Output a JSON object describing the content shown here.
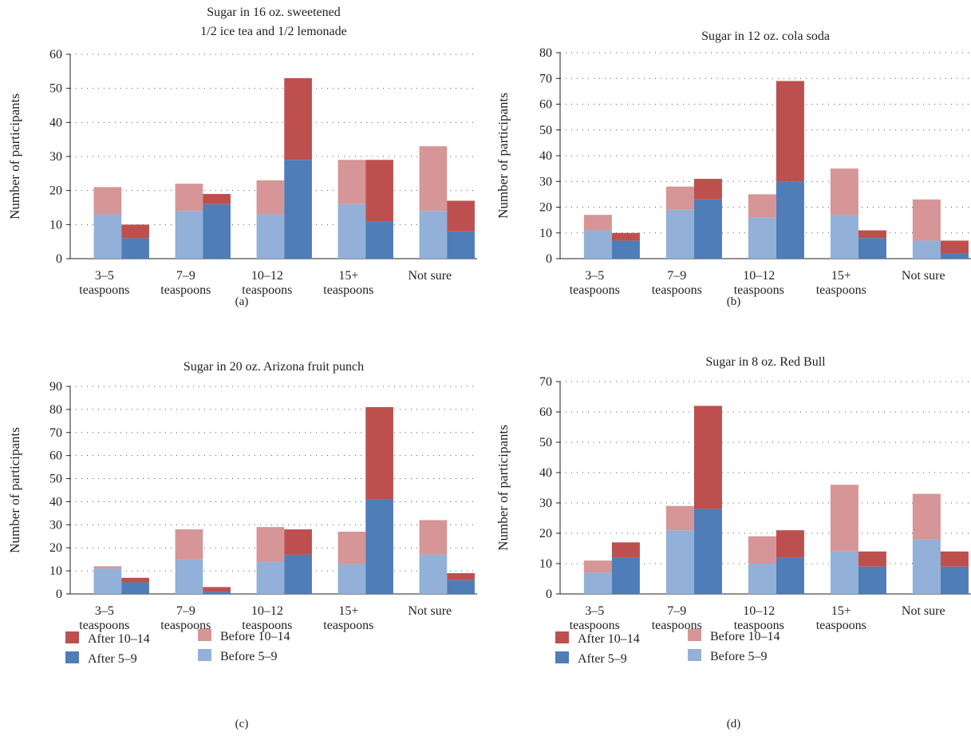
{
  "figure": {
    "colors": {
      "before_5_9": "#92b0d8",
      "before_10_14": "#d69596",
      "after_5_9": "#4e7db8",
      "after_10_14": "#bd504e"
    }
  },
  "chart_data": [
    {
      "type": "bar",
      "panel": "(a)",
      "title_lines": [
        "Sugar in 16 oz. sweetened",
        "1/2 ice tea and 1/2 lemonade"
      ],
      "ylabel": "Number of participants",
      "ylim": [
        0,
        60
      ],
      "yticks": [
        0,
        10,
        20,
        30,
        40,
        50,
        60
      ],
      "grid": true,
      "categories": [
        [
          "3–5",
          "teaspoons"
        ],
        [
          "7–9",
          "teaspoons"
        ],
        [
          "10–12",
          "teaspoons"
        ],
        [
          "15+",
          "teaspoons"
        ],
        [
          "Not sure"
        ]
      ],
      "stacks": [
        {
          "name": "Before",
          "series": [
            {
              "name": "Before 5–9",
              "values": [
                13,
                14,
                13,
                16,
                14
              ]
            },
            {
              "name": "Before 10–14",
              "values": [
                8,
                8,
                10,
                13,
                19
              ]
            }
          ]
        },
        {
          "name": "After",
          "series": [
            {
              "name": "After 5–9",
              "values": [
                6,
                16,
                29,
                11,
                8
              ]
            },
            {
              "name": "After 10–14",
              "values": [
                4,
                3,
                24,
                18,
                9
              ]
            }
          ]
        }
      ]
    },
    {
      "type": "bar",
      "panel": "(b)",
      "title_lines": [
        "Sugar in 12 oz. cola soda"
      ],
      "ylabel": "Number of participants",
      "ylim": [
        0,
        80
      ],
      "yticks": [
        0,
        10,
        20,
        30,
        40,
        50,
        60,
        70,
        80
      ],
      "grid": true,
      "categories": [
        [
          "3–5",
          "teaspoons"
        ],
        [
          "7–9",
          "teaspoons"
        ],
        [
          "10–12",
          "teaspoons"
        ],
        [
          "15+",
          "teaspoons"
        ],
        [
          "Not sure"
        ]
      ],
      "stacks": [
        {
          "name": "Before",
          "series": [
            {
              "name": "Before 5–9",
              "values": [
                11,
                19,
                16,
                17,
                7
              ]
            },
            {
              "name": "Before 10–14",
              "values": [
                6,
                9,
                9,
                18,
                16
              ]
            }
          ]
        },
        {
          "name": "After",
          "series": [
            {
              "name": "After 5–9",
              "values": [
                7,
                23,
                30,
                8,
                2
              ]
            },
            {
              "name": "After 10–14",
              "values": [
                3,
                8,
                39,
                3,
                5
              ]
            }
          ]
        }
      ]
    },
    {
      "type": "bar",
      "panel": "(c)",
      "title_lines": [
        "Sugar in 20 oz. Arizona fruit punch"
      ],
      "ylabel": "Number of participants",
      "ylim": [
        0,
        90
      ],
      "yticks": [
        0,
        10,
        20,
        30,
        40,
        50,
        60,
        70,
        80,
        90
      ],
      "grid": true,
      "categories": [
        [
          "3–5",
          "teaspoons"
        ],
        [
          "7–9",
          "teaspoons"
        ],
        [
          "10–12",
          "teaspoons"
        ],
        [
          "15+",
          "teaspoons"
        ],
        [
          "Not sure"
        ]
      ],
      "stacks": [
        {
          "name": "Before",
          "series": [
            {
              "name": "Before 5–9",
              "values": [
                11,
                15,
                14,
                13,
                17
              ]
            },
            {
              "name": "Before 10–14",
              "values": [
                1,
                13,
                15,
                14,
                15
              ]
            }
          ]
        },
        {
          "name": "After",
          "series": [
            {
              "name": "After 5–9",
              "values": [
                5,
                1,
                17,
                41,
                6
              ]
            },
            {
              "name": "After 10–14",
              "values": [
                2,
                2,
                11,
                40,
                3
              ]
            }
          ]
        }
      ],
      "legend": {
        "placement": "bottom",
        "items": [
          "After 10–14",
          "After 5–9",
          "Before 10–14",
          "Before 5–9"
        ]
      }
    },
    {
      "type": "bar",
      "panel": "(d)",
      "title_lines": [
        "Sugar in 8 oz. Red Bull"
      ],
      "ylabel": "Number of participants",
      "ylim": [
        0,
        70
      ],
      "yticks": [
        0,
        10,
        20,
        30,
        40,
        50,
        60,
        70
      ],
      "grid": true,
      "categories": [
        [
          "3–5",
          "teaspoons"
        ],
        [
          "7–9",
          "teaspoons"
        ],
        [
          "10–12",
          "teaspoons"
        ],
        [
          "15+",
          "teaspoons"
        ],
        [
          "Not sure"
        ]
      ],
      "stacks": [
        {
          "name": "Before",
          "series": [
            {
              "name": "Before 5–9",
              "values": [
                7,
                21,
                10,
                14,
                18
              ]
            },
            {
              "name": "Before 10–14",
              "values": [
                4,
                8,
                9,
                22,
                15
              ]
            }
          ]
        },
        {
          "name": "After",
          "series": [
            {
              "name": "After 5–9",
              "values": [
                12,
                28,
                12,
                9,
                9
              ]
            },
            {
              "name": "After 10–14",
              "values": [
                5,
                34,
                9,
                5,
                5
              ]
            }
          ]
        }
      ],
      "legend": {
        "placement": "bottom",
        "items": [
          "After 10–14",
          "After 5–9",
          "Before 10–14",
          "Before 5–9"
        ]
      }
    }
  ]
}
